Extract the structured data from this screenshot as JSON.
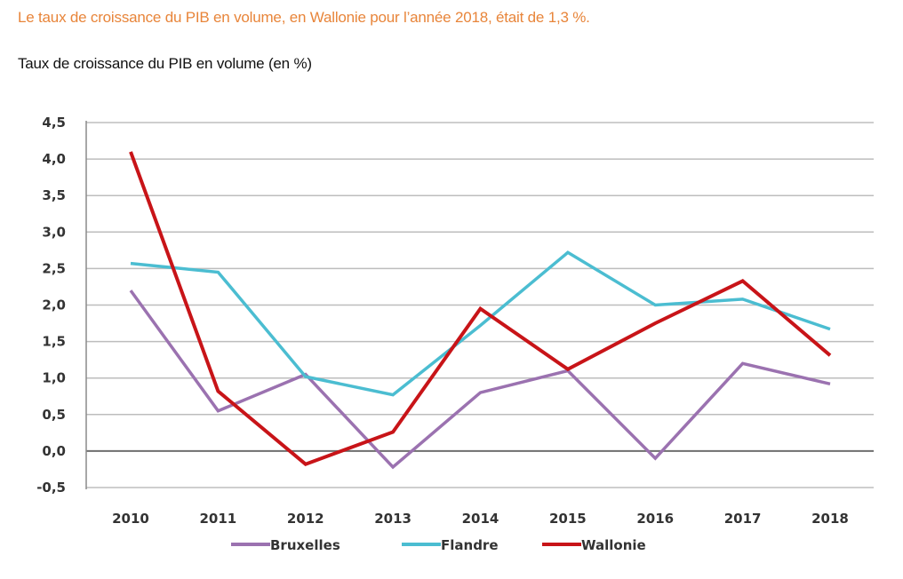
{
  "header": {
    "headline": "Le taux de croissance du PIB en volume, en Wallonie pour l’année 2018, était de 1,3 %.",
    "subtitle": "Taux de croissance du PIB en volume (en %)"
  },
  "chart_data": {
    "type": "line",
    "title": "Taux de croissance du PIB en volume (en %)",
    "xlabel": "",
    "ylabel": "",
    "x": [
      "2010",
      "2011",
      "2012",
      "2013",
      "2014",
      "2015",
      "2016",
      "2017",
      "2018"
    ],
    "ylim": [
      -0.5,
      4.5
    ],
    "yticks": [
      "-0,5",
      "0,0",
      "0,5",
      "1,0",
      "1,5",
      "2,0",
      "2,5",
      "3,0",
      "3,5",
      "4,0",
      "4,5"
    ],
    "ytick_values": [
      -0.5,
      0,
      0.5,
      1.0,
      1.5,
      2.0,
      2.5,
      3.0,
      3.5,
      4.0,
      4.5
    ],
    "grid": true,
    "legend": "bottom",
    "series": [
      {
        "name": "Bruxelles",
        "color": "#9b72b0",
        "values": [
          2.2,
          0.55,
          1.05,
          -0.22,
          0.8,
          1.1,
          -0.1,
          1.2,
          0.92
        ]
      },
      {
        "name": "Flandre",
        "color": "#4bbdd1",
        "values": [
          2.57,
          2.45,
          1.02,
          0.77,
          1.72,
          2.72,
          2.0,
          2.08,
          1.67
        ]
      },
      {
        "name": "Wallonie",
        "color": "#c81418",
        "values": [
          4.1,
          0.82,
          -0.18,
          0.26,
          1.95,
          1.12,
          1.75,
          2.33,
          1.31
        ]
      }
    ]
  }
}
